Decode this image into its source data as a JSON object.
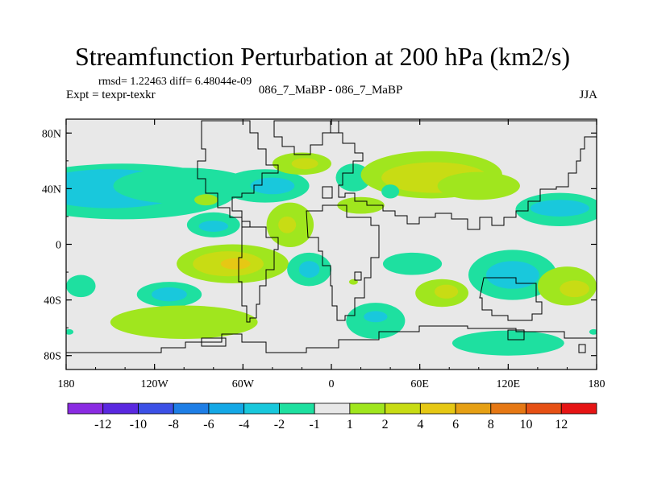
{
  "chart_data": {
    "type": "heatmap",
    "title": "Streamfunction Perturbation at 200 hPa (km2/s)",
    "left_note": "rmsd= 1.22463 diff= 6.48044e-09",
    "left_label": "Expt = texpr-texkr",
    "center_label": "086_7_MaBP - 086_7_MaBP",
    "right_label": "JJA",
    "x_range": [
      -180,
      180
    ],
    "y_range": [
      -90,
      90
    ],
    "x_ticks": [
      {
        "value": -180,
        "label": "180"
      },
      {
        "value": -120,
        "label": "120W"
      },
      {
        "value": -60,
        "label": "60W"
      },
      {
        "value": 0,
        "label": "0"
      },
      {
        "value": 60,
        "label": "60E"
      },
      {
        "value": 120,
        "label": "120E"
      },
      {
        "value": 180,
        "label": "180"
      }
    ],
    "y_ticks": [
      {
        "value": 80,
        "label": "80N"
      },
      {
        "value": 40,
        "label": "40N"
      },
      {
        "value": 0,
        "label": "0"
      },
      {
        "value": -40,
        "label": "40S"
      },
      {
        "value": -80,
        "label": "80S"
      }
    ],
    "colorbar": {
      "colors": [
        "#8a2be2",
        "#5a28e0",
        "#3c50e6",
        "#1e7ee6",
        "#14a8e6",
        "#19c8dc",
        "#1ee0a0",
        "#e8e8e8",
        "#a0e61e",
        "#c8dc14",
        "#e6c814",
        "#e6a014",
        "#e67814",
        "#e65014",
        "#e61414"
      ],
      "labels": [
        "-12",
        "-10",
        "-8",
        "-6",
        "-4",
        "-2",
        "-1",
        "1",
        "2",
        "4",
        "6",
        "8",
        "10",
        "12"
      ]
    },
    "anomalies": [
      {
        "lon": -142,
        "lat": 38,
        "rx": 78,
        "ry": 20,
        "level": "-1"
      },
      {
        "lon": -150,
        "lat": 40,
        "rx": 52,
        "ry": 14,
        "level": "-2"
      },
      {
        "lon": -100,
        "lat": 42,
        "rx": 48,
        "ry": 13,
        "level": "-1"
      },
      {
        "lon": -45,
        "lat": 42,
        "rx": 30,
        "ry": 12,
        "level": "-1"
      },
      {
        "lon": -40,
        "lat": 42,
        "rx": 15,
        "ry": 6,
        "level": "-2"
      },
      {
        "lon": -20,
        "lat": 58,
        "rx": 20,
        "ry": 8,
        "level": "1"
      },
      {
        "lon": -18,
        "lat": 58,
        "rx": 9,
        "ry": 4,
        "level": "2"
      },
      {
        "lon": 15,
        "lat": 48,
        "rx": 12,
        "ry": 10,
        "level": "-1"
      },
      {
        "lon": 68,
        "lat": 50,
        "rx": 48,
        "ry": 17,
        "level": "1"
      },
      {
        "lon": 70,
        "lat": 48,
        "rx": 36,
        "ry": 11,
        "level": "2"
      },
      {
        "lon": 100,
        "lat": 42,
        "rx": 28,
        "ry": 10,
        "level": "1"
      },
      {
        "lon": 155,
        "lat": 25,
        "rx": 30,
        "ry": 12,
        "level": "-1"
      },
      {
        "lon": 155,
        "lat": 26,
        "rx": 20,
        "ry": 6,
        "level": "-2"
      },
      {
        "lon": -85,
        "lat": 32,
        "rx": 8,
        "ry": 4,
        "level": "1"
      },
      {
        "lon": -80,
        "lat": 14,
        "rx": 18,
        "ry": 9,
        "level": "-1"
      },
      {
        "lon": -80,
        "lat": 13,
        "rx": 10,
        "ry": 4,
        "level": "-2"
      },
      {
        "lon": -28,
        "lat": 14,
        "rx": 16,
        "ry": 16,
        "level": "1"
      },
      {
        "lon": -30,
        "lat": 14,
        "rx": 6,
        "ry": 6,
        "level": "2"
      },
      {
        "lon": 20,
        "lat": 28,
        "rx": 16,
        "ry": 6,
        "level": "1"
      },
      {
        "lon": -67,
        "lat": -14,
        "rx": 38,
        "ry": 14,
        "level": "1"
      },
      {
        "lon": -70,
        "lat": -14,
        "rx": 24,
        "ry": 9,
        "level": "2"
      },
      {
        "lon": -65,
        "lat": -14,
        "rx": 10,
        "ry": 4,
        "level": "4"
      },
      {
        "lon": -15,
        "lat": -18,
        "rx": 15,
        "ry": 12,
        "level": "-1"
      },
      {
        "lon": -15,
        "lat": -18,
        "rx": 7,
        "ry": 6,
        "level": "-2"
      },
      {
        "lon": 55,
        "lat": -14,
        "rx": 20,
        "ry": 8,
        "level": "-1"
      },
      {
        "lon": 123,
        "lat": -22,
        "rx": 30,
        "ry": 18,
        "level": "-1"
      },
      {
        "lon": 123,
        "lat": -22,
        "rx": 18,
        "ry": 10,
        "level": "-2"
      },
      {
        "lon": 160,
        "lat": -30,
        "rx": 20,
        "ry": 14,
        "level": "1"
      },
      {
        "lon": 165,
        "lat": -32,
        "rx": 10,
        "ry": 6,
        "level": "2"
      },
      {
        "lon": 75,
        "lat": -35,
        "rx": 18,
        "ry": 10,
        "level": "1"
      },
      {
        "lon": 78,
        "lat": -34,
        "rx": 8,
        "ry": 5,
        "level": "2"
      },
      {
        "lon": -110,
        "lat": -36,
        "rx": 22,
        "ry": 9,
        "level": "-1"
      },
      {
        "lon": -110,
        "lat": -36,
        "rx": 12,
        "ry": 5,
        "level": "-2"
      },
      {
        "lon": -170,
        "lat": -30,
        "rx": 10,
        "ry": 8,
        "level": "-1"
      },
      {
        "lon": -100,
        "lat": -56,
        "rx": 50,
        "ry": 12,
        "level": "1"
      },
      {
        "lon": 30,
        "lat": -55,
        "rx": 20,
        "ry": 13,
        "level": "-1"
      },
      {
        "lon": 30,
        "lat": -52,
        "rx": 8,
        "ry": 4,
        "level": "-2"
      },
      {
        "lon": 120,
        "lat": -71,
        "rx": 38,
        "ry": 9,
        "level": "-1"
      },
      {
        "lon": 178,
        "lat": -63,
        "rx": 3,
        "ry": 2,
        "level": "-1"
      },
      {
        "lon": -178,
        "lat": -63,
        "rx": 3,
        "ry": 2,
        "level": "-1"
      },
      {
        "lon": 40,
        "lat": 38,
        "rx": 6,
        "ry": 5,
        "level": "-1"
      },
      {
        "lon": 15,
        "lat": -27,
        "rx": 3,
        "ry": 2,
        "level": "1"
      }
    ]
  }
}
